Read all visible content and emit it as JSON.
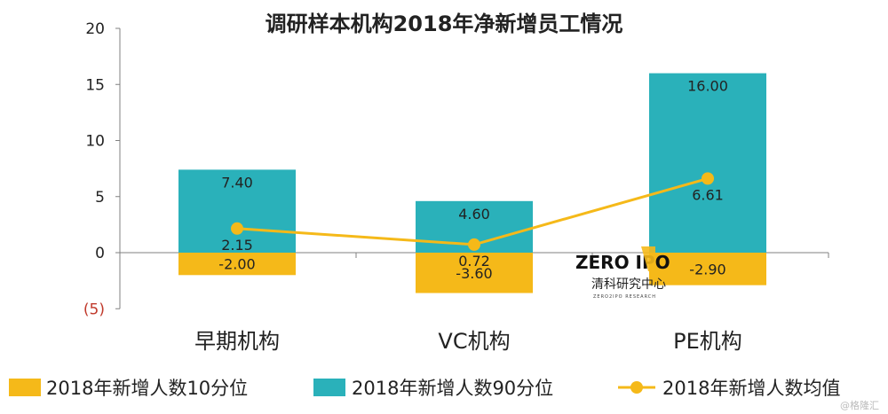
{
  "chart_data": {
    "type": "bar",
    "title": "调研样本机构2018年净新增员工情况",
    "categories": [
      "早期机构",
      "VC机构",
      "PE机构"
    ],
    "y_ticks": [
      "20",
      "15",
      "10",
      "5",
      "0",
      "(5)"
    ],
    "ylim": [
      -5,
      20
    ],
    "series": [
      {
        "name": "2018年新增人数10分位",
        "kind": "bar",
        "color": "#f5b919",
        "values": [
          -2.0,
          -3.6,
          -2.9
        ],
        "labels": [
          "-2.00",
          "-3.60",
          "-2.90"
        ]
      },
      {
        "name": "2018年新增人数90分位",
        "kind": "bar",
        "color": "#2ab1ba",
        "values": [
          7.4,
          4.6,
          16.0
        ],
        "labels": [
          "7.40",
          "4.60",
          "16.00"
        ]
      },
      {
        "name": "2018年新增人数均值",
        "kind": "line",
        "color": "#f5b919",
        "values": [
          2.15,
          0.72,
          6.61
        ],
        "labels": [
          "2.15",
          "0.72",
          "6.61"
        ]
      }
    ],
    "legend_position": "bottom",
    "grid": false
  },
  "watermark": {
    "logo_text": "ZERO  IPO",
    "cn_text": "清科研究中心",
    "en_text": "ZERO2IPO RESEARCH"
  },
  "corner_mark": "@格隆汇"
}
